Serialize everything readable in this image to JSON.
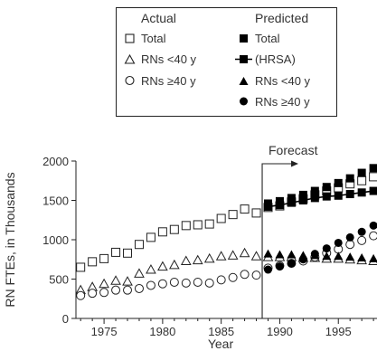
{
  "legend": {
    "actual_heading": "Actual",
    "predicted_heading": "Predicted",
    "actual_items": [
      "Total",
      "RNs <40 y",
      "RNs ≥40 y"
    ],
    "predicted_items": [
      "Total",
      "(HRSA)",
      "RNs <40 y",
      "RNs ≥40 y"
    ]
  },
  "chart_data": {
    "type": "scatter",
    "xlabel": "Year",
    "ylabel": "RN FTEs, in Thousands",
    "xlim": [
      1972.6,
      1998.3
    ],
    "ylim": [
      0,
      2000
    ],
    "xticks": [
      1975,
      1980,
      1985,
      1990,
      1995
    ],
    "yticks": [
      0,
      500,
      1000,
      1500,
      2000
    ],
    "annotation": {
      "label": "Forecast",
      "x": 1988.5
    },
    "grid": false,
    "legend_position": "top, above plot",
    "series": [
      {
        "name": "Total",
        "group": "Actual",
        "marker": "open-square",
        "x": [
          1973,
          1974,
          1975,
          1976,
          1977,
          1978,
          1979,
          1980,
          1981,
          1982,
          1983,
          1984,
          1985,
          1986,
          1987,
          1988
        ],
        "y": [
          650,
          720,
          760,
          840,
          830,
          940,
          1030,
          1100,
          1130,
          1180,
          1190,
          1200,
          1270,
          1320,
          1390,
          1340
        ]
      },
      {
        "name": "RNs <40 y",
        "group": "Actual",
        "marker": "open-triangle",
        "x": [
          1973,
          1974,
          1975,
          1976,
          1977,
          1978,
          1979,
          1980,
          1981,
          1982,
          1983,
          1984,
          1985,
          1986,
          1987,
          1988
        ],
        "y": [
          360,
          400,
          440,
          480,
          470,
          570,
          620,
          660,
          680,
          730,
          740,
          760,
          790,
          800,
          830,
          790
        ]
      },
      {
        "name": "RNs ≥40 y",
        "group": "Actual",
        "marker": "open-circle",
        "x": [
          1973,
          1974,
          1975,
          1976,
          1977,
          1978,
          1979,
          1980,
          1981,
          1982,
          1983,
          1984,
          1985,
          1986,
          1987,
          1988
        ],
        "y": [
          290,
          320,
          330,
          360,
          360,
          380,
          420,
          440,
          460,
          450,
          460,
          450,
          490,
          520,
          560,
          550
        ]
      },
      {
        "name": "Total",
        "group": "Predicted",
        "marker": "filled-square",
        "x": [
          1989,
          1990,
          1991,
          1992,
          1993,
          1994,
          1995,
          1996,
          1997,
          1998
        ],
        "y": [
          1460,
          1490,
          1530,
          1570,
          1620,
          1670,
          1720,
          1780,
          1850,
          1910
        ]
      },
      {
        "name": "(HRSA)",
        "group": "Predicted",
        "marker": "filled-square-line",
        "x": [
          1989,
          1990,
          1991,
          1992,
          1993,
          1994,
          1995,
          1996,
          1997,
          1998
        ],
        "y": [
          1420,
          1440,
          1470,
          1500,
          1530,
          1550,
          1560,
          1580,
          1600,
          1620
        ]
      },
      {
        "name": "RNs <40 y",
        "group": "Predicted",
        "marker": "filled-triangle",
        "x": [
          1989,
          1990,
          1991,
          1992,
          1993,
          1994,
          1995,
          1996,
          1997,
          1998
        ],
        "y": [
          820,
          810,
          810,
          800,
          800,
          790,
          790,
          780,
          770,
          760
        ]
      },
      {
        "name": "RNs ≥40 y",
        "group": "Predicted",
        "marker": "filled-circle",
        "x": [
          1989,
          1990,
          1991,
          1992,
          1993,
          1994,
          1995,
          1996,
          1997,
          1998
        ],
        "y": [
          620,
          660,
          700,
          750,
          820,
          890,
          960,
          1030,
          1100,
          1180
        ]
      },
      {
        "name": "Total",
        "group": "Projection",
        "marker": "open-square",
        "x": [
          1989,
          1990,
          1991,
          1992,
          1993,
          1994,
          1995,
          1996,
          1997,
          1998
        ],
        "y": [
          1410,
          1430,
          1480,
          1520,
          1570,
          1620,
          1660,
          1710,
          1750,
          1800
        ]
      },
      {
        "name": "RNs <40 y",
        "group": "Projection",
        "marker": "open-triangle",
        "x": [
          1989,
          1990,
          1991,
          1992,
          1993,
          1994,
          1995,
          1996,
          1997,
          1998
        ],
        "y": [
          780,
          780,
          780,
          770,
          770,
          760,
          760,
          750,
          740,
          730
        ]
      },
      {
        "name": "RNs ≥40 y",
        "group": "Projection",
        "marker": "open-circle",
        "x": [
          1989,
          1990,
          1991,
          1992,
          1993,
          1994,
          1995,
          1996,
          1997,
          1998
        ],
        "y": [
          640,
          670,
          700,
          730,
          780,
          830,
          880,
          940,
          990,
          1050
        ]
      }
    ]
  }
}
